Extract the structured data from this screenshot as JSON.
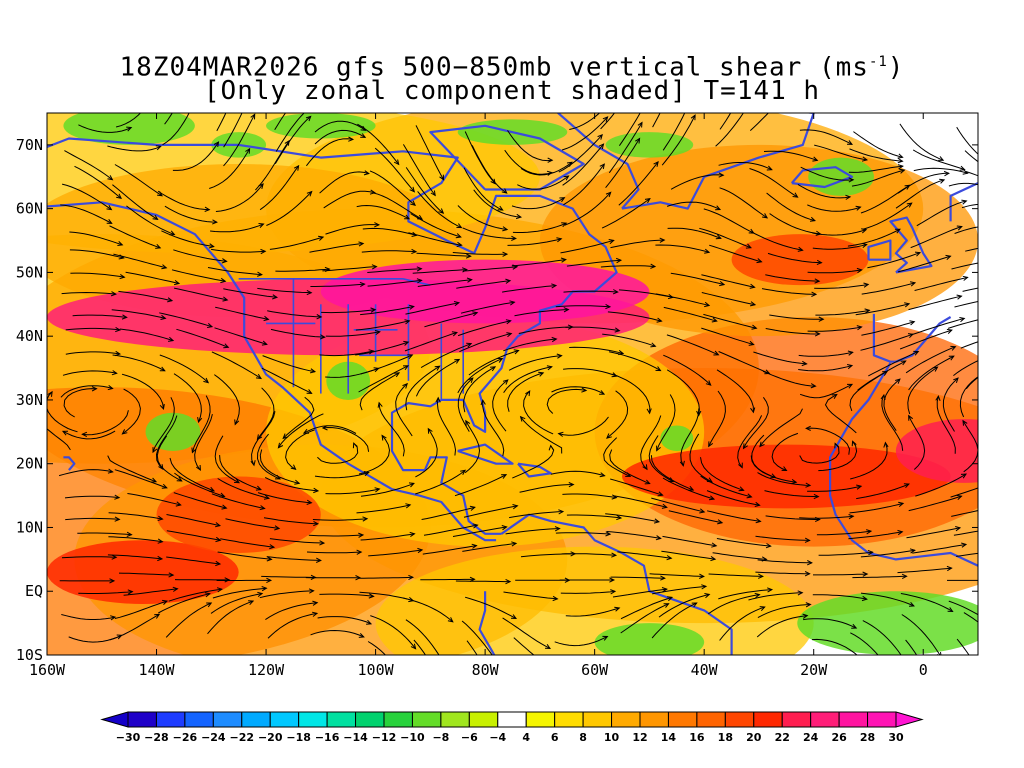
{
  "title": {
    "line1": "18Z04MAR2026 gfs 500−850mb vertical shear (ms",
    "line1_sup": "-1",
    "line1_end": ")",
    "line2": "[Only zonal component shaded] T=141 h"
  },
  "map": {
    "lon_range": [
      -160,
      10
    ],
    "lat_range": [
      -10,
      75
    ],
    "lat_labels": [
      "70N",
      "60N",
      "50N",
      "40N",
      "30N",
      "20N",
      "10N",
      "EQ",
      "10S"
    ],
    "lat_values": [
      70,
      60,
      50,
      40,
      30,
      20,
      10,
      0,
      -10
    ],
    "lon_labels": [
      "160W",
      "140W",
      "120W",
      "100W",
      "80W",
      "60W",
      "40W",
      "20W",
      "0"
    ],
    "lon_values": [
      -160,
      -140,
      -120,
      -100,
      -80,
      -60,
      -40,
      -20,
      0
    ],
    "coastline_color": "#3b4bdc",
    "streamline_color": "#000000"
  },
  "colorbar": {
    "labels": [
      "−30",
      "−28",
      "−26",
      "−24",
      "−22",
      "−20",
      "−18",
      "−16",
      "−14",
      "−12",
      "−10",
      "−8",
      "−6",
      "−4",
      "4",
      "6",
      "8",
      "10",
      "12",
      "14",
      "16",
      "18",
      "20",
      "22",
      "24",
      "26",
      "28",
      "30"
    ],
    "colors": [
      "#1f00c8",
      "#1e3cff",
      "#1464ff",
      "#1e8cff",
      "#00aaff",
      "#00c8ff",
      "#00e6e6",
      "#00e0a0",
      "#00d26e",
      "#28d23c",
      "#64dc28",
      "#a0e61e",
      "#c8f000",
      "#ffffff",
      "#f5f500",
      "#ffdc00",
      "#ffc800",
      "#ffaa00",
      "#ff9600",
      "#ff7800",
      "#ff6400",
      "#ff4600",
      "#ff2800",
      "#ff1e50",
      "#ff1e78",
      "#ff14a0",
      "#ff14b4"
    ],
    "low_arrow_color": "#1400c8",
    "high_arrow_color": "#ff14d2"
  }
}
